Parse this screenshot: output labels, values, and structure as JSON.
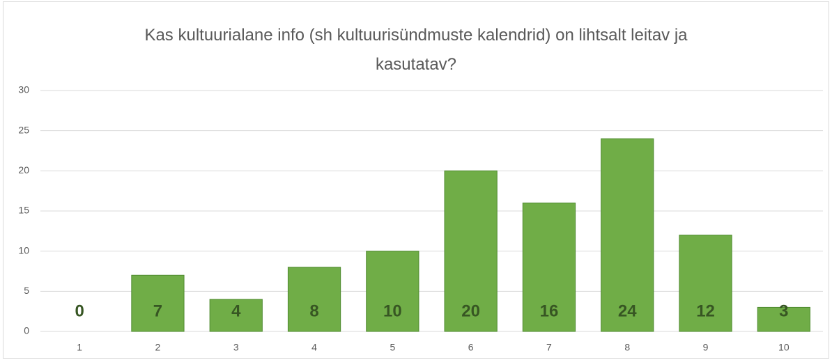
{
  "chart_data": {
    "type": "bar",
    "title": "Kas kultuurialane info (sh kultuurisündmuste kalendrid) on lihtsalt leitav ja kasutatav?",
    "categories": [
      "1",
      "2",
      "3",
      "4",
      "5",
      "6",
      "7",
      "8",
      "9",
      "10"
    ],
    "values": [
      0,
      7,
      4,
      8,
      10,
      20,
      16,
      24,
      12,
      3
    ],
    "color": "#70ad47",
    "ylim": [
      0,
      30
    ],
    "yticks": [
      0,
      5,
      10,
      15,
      20,
      25,
      30
    ],
    "grid": true,
    "data_labels": true
  }
}
